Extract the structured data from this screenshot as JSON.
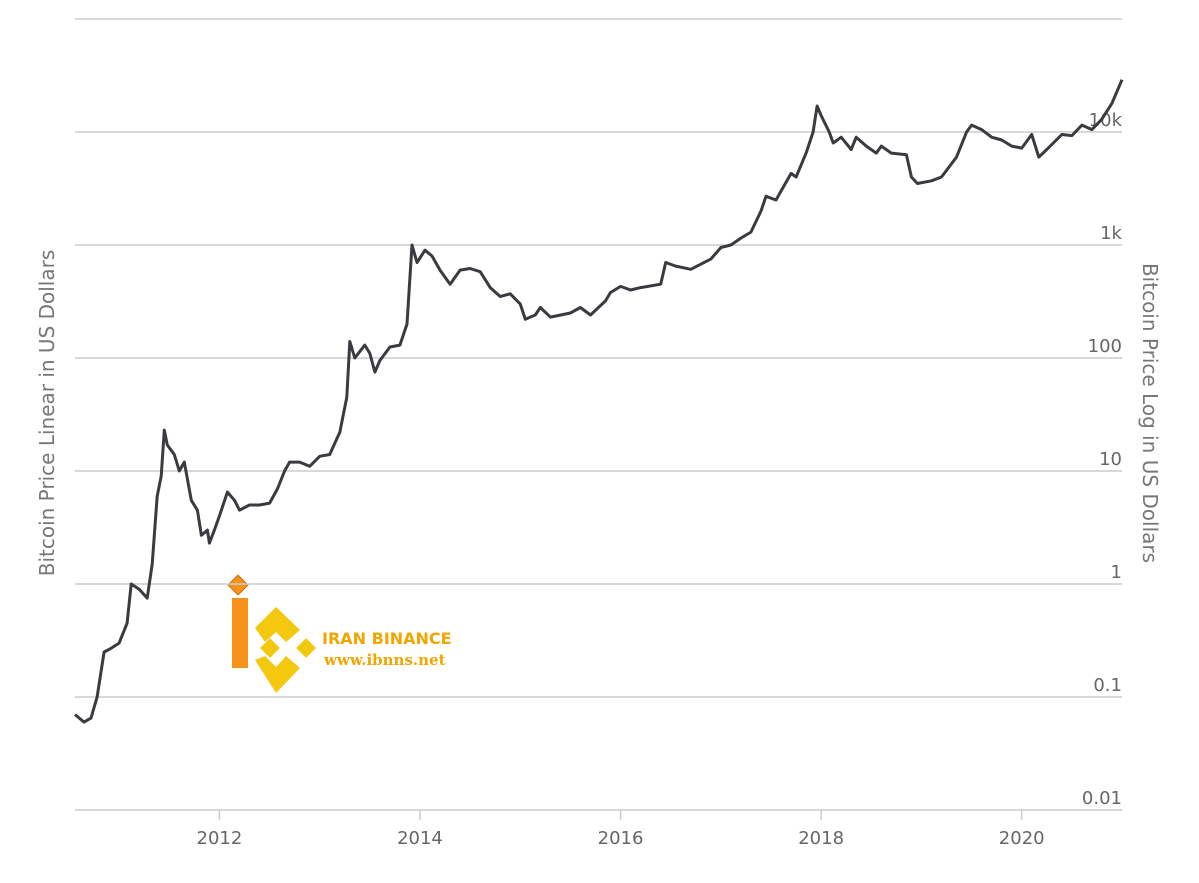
{
  "chart_data": {
    "type": "line",
    "y_label": "Bitcoin Price Linear in US Dollars",
    "y2_label": "Bitcoin Price Log in US Dollars",
    "log_scale": true,
    "grid": true,
    "xlim": [
      2010.56,
      2021.0
    ],
    "xticks": [
      2012,
      2014,
      2016,
      2018,
      2020
    ],
    "ylim": [
      0.01,
      100000
    ],
    "yticks": [
      0.01,
      0.1,
      1,
      10,
      100,
      {
        "value": 1000,
        "label": "1k"
      },
      {
        "value": 10000,
        "label": "10k"
      }
    ],
    "x": [
      2010.56,
      2010.65,
      2010.72,
      2010.78,
      2010.85,
      2010.92,
      2011.0,
      2011.08,
      2011.12,
      2011.2,
      2011.28,
      2011.33,
      2011.38,
      2011.42,
      2011.45,
      2011.48,
      2011.55,
      2011.6,
      2011.65,
      2011.72,
      2011.78,
      2011.82,
      2011.88,
      2011.9,
      2011.95,
      2012.0,
      2012.08,
      2012.15,
      2012.2,
      2012.3,
      2012.4,
      2012.5,
      2012.58,
      2012.65,
      2012.7,
      2012.8,
      2012.9,
      2013.0,
      2013.1,
      2013.2,
      2013.27,
      2013.3,
      2013.35,
      2013.45,
      2013.5,
      2013.55,
      2013.6,
      2013.7,
      2013.8,
      2013.87,
      2013.92,
      2013.97,
      2014.05,
      2014.12,
      2014.2,
      2014.3,
      2014.4,
      2014.5,
      2014.6,
      2014.7,
      2014.8,
      2014.9,
      2015.0,
      2015.05,
      2015.15,
      2015.2,
      2015.3,
      2015.5,
      2015.6,
      2015.7,
      2015.85,
      2015.9,
      2016.0,
      2016.1,
      2016.2,
      2016.4,
      2016.45,
      2016.55,
      2016.7,
      2016.9,
      2017.0,
      2017.1,
      2017.2,
      2017.3,
      2017.4,
      2017.45,
      2017.55,
      2017.6,
      2017.7,
      2017.75,
      2017.85,
      2017.92,
      2017.96,
      2018.0,
      2018.08,
      2018.12,
      2018.2,
      2018.3,
      2018.35,
      2018.45,
      2018.55,
      2018.6,
      2018.7,
      2018.85,
      2018.9,
      2018.96,
      2019.1,
      2019.2,
      2019.35,
      2019.45,
      2019.5,
      2019.6,
      2019.7,
      2019.8,
      2019.9,
      2020.0,
      2020.1,
      2020.17,
      2020.25,
      2020.4,
      2020.5,
      2020.6,
      2020.7,
      2020.8,
      2020.9,
      2021.0
    ],
    "series": [
      {
        "color": "#3a3b40",
        "values": [
          0.07,
          0.06,
          0.065,
          0.1,
          0.25,
          0.27,
          0.3,
          0.45,
          1.0,
          0.9,
          0.75,
          1.5,
          6,
          9,
          23,
          17,
          14,
          10,
          12,
          5.5,
          4.5,
          2.7,
          3,
          2.3,
          3,
          4,
          6.5,
          5.5,
          4.5,
          5,
          5,
          5.2,
          7,
          10,
          12,
          12,
          11,
          13.5,
          14,
          22,
          45,
          140,
          100,
          130,
          110,
          75,
          95,
          125,
          130,
          200,
          1000,
          700,
          900,
          800,
          600,
          450,
          600,
          620,
          580,
          420,
          350,
          370,
          300,
          220,
          240,
          280,
          230,
          250,
          280,
          240,
          320,
          380,
          430,
          400,
          420,
          450,
          700,
          650,
          610,
          750,
          950,
          1000,
          1150,
          1300,
          2000,
          2700,
          2500,
          3000,
          4300,
          4000,
          6500,
          10000,
          17000,
          14000,
          10000,
          8000,
          9000,
          7000,
          9000,
          7500,
          6500,
          7500,
          6500,
          6300,
          4000,
          3500,
          3700,
          4000,
          6000,
          10000,
          11500,
          10500,
          9000,
          8500,
          7500,
          7200,
          9500,
          6000,
          7000,
          9500,
          9300,
          11500,
          10500,
          13000,
          18000,
          29000
        ]
      }
    ]
  },
  "watermark": {
    "title": "IRAN BINANCE",
    "url": "www.ibnns.net"
  }
}
